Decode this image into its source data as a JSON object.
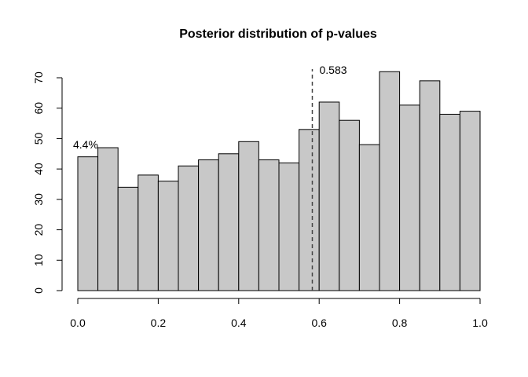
{
  "chart_data": {
    "type": "histogram",
    "title": "Posterior distribution of p-values",
    "bins": [
      0,
      0.05,
      0.1,
      0.15,
      0.2,
      0.25,
      0.3,
      0.35,
      0.4,
      0.45,
      0.5,
      0.55,
      0.6,
      0.65,
      0.7,
      0.75,
      0.8,
      0.85,
      0.9,
      0.95,
      1
    ],
    "values": [
      44,
      47,
      34,
      38,
      36,
      41,
      43,
      45,
      49,
      43,
      42,
      53,
      62,
      56,
      48,
      72,
      61,
      69,
      58,
      59
    ],
    "color": "#c8c8c8",
    "xlim": [
      0,
      1
    ],
    "xticks": [
      {
        "value": 0,
        "label": "0.0"
      },
      0.2,
      0.4,
      0.6,
      0.8,
      {
        "value": 1,
        "label": "1.0"
      }
    ],
    "ylim": [
      0,
      72
    ],
    "yticks": [
      0,
      10,
      20,
      30,
      40,
      50,
      60,
      70
    ],
    "reference_line": 0.583,
    "annotation": "4.4%"
  }
}
